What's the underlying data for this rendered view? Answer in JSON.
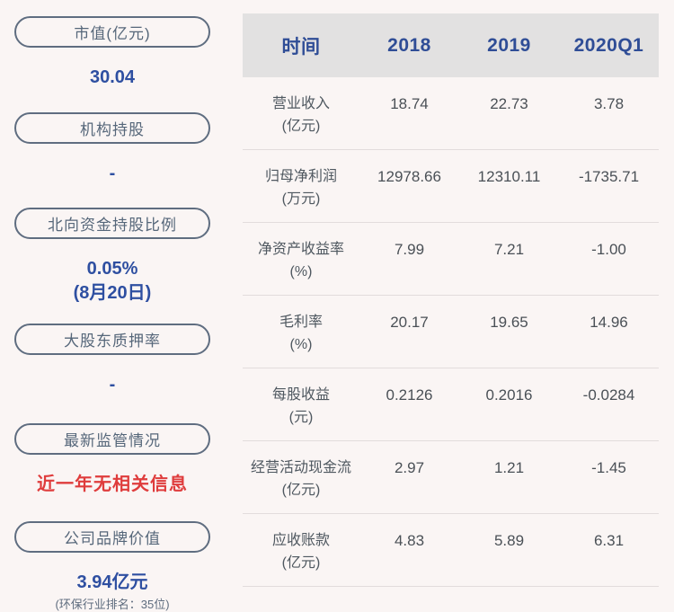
{
  "colors": {
    "page_bg": "#faf5f4",
    "header_bg": "#e2e1e1",
    "header_text": "#2f4d96",
    "pill_border": "#5f6d80",
    "pill_text": "#56677a",
    "value_blue": "#2e4fa1",
    "value_red": "#df3c3c",
    "table_text": "#4a5056",
    "divider": "#e2dcdc"
  },
  "sidebar": {
    "items": [
      {
        "key": "market-cap",
        "label": "市值(亿元)",
        "value": "30.04"
      },
      {
        "key": "institutional-holding",
        "label": "机构持股",
        "value": "-"
      },
      {
        "key": "northbound-ratio",
        "label": "北向资金持股比例",
        "value": "0.05%",
        "value2": "(8月20日)"
      },
      {
        "key": "pledge-ratio",
        "label": "大股东质押率",
        "value": "-"
      },
      {
        "key": "latest-regulation",
        "label": "最新监管情况",
        "value": "近一年无相关信息",
        "color": "red"
      },
      {
        "key": "brand-value",
        "label": "公司品牌价值",
        "value": "3.94亿元",
        "subtext": "(环保行业排名：35位)"
      }
    ]
  },
  "table": {
    "columns": [
      "时间",
      "2018",
      "2019",
      "2020Q1"
    ],
    "column_keys": [
      "time",
      "2018",
      "2019",
      "2020q1"
    ],
    "rows": [
      {
        "key": "revenue",
        "name": "营业收入",
        "unit": "(亿元)",
        "values": [
          "18.74",
          "22.73",
          "3.78"
        ]
      },
      {
        "key": "net-profit",
        "name": "归母净利润",
        "unit": "(万元)",
        "values": [
          "12978.66",
          "12310.11",
          "-1735.71"
        ]
      },
      {
        "key": "roe",
        "name": "净资产收益率",
        "unit": "(%)",
        "values": [
          "7.99",
          "7.21",
          "-1.00"
        ]
      },
      {
        "key": "gross-margin",
        "name": "毛利率",
        "unit": "(%)",
        "values": [
          "20.17",
          "19.65",
          "14.96"
        ]
      },
      {
        "key": "eps",
        "name": "每股收益",
        "unit": "(元)",
        "values": [
          "0.2126",
          "0.2016",
          "-0.0284"
        ]
      },
      {
        "key": "operating-cash-flow",
        "name": "经营活动现金流",
        "unit": "(亿元)",
        "values": [
          "2.97",
          "1.21",
          "-1.45"
        ]
      },
      {
        "key": "accounts-receivable",
        "name": "应收账款",
        "unit": "(亿元)",
        "values": [
          "4.83",
          "5.89",
          "6.31"
        ]
      }
    ]
  }
}
